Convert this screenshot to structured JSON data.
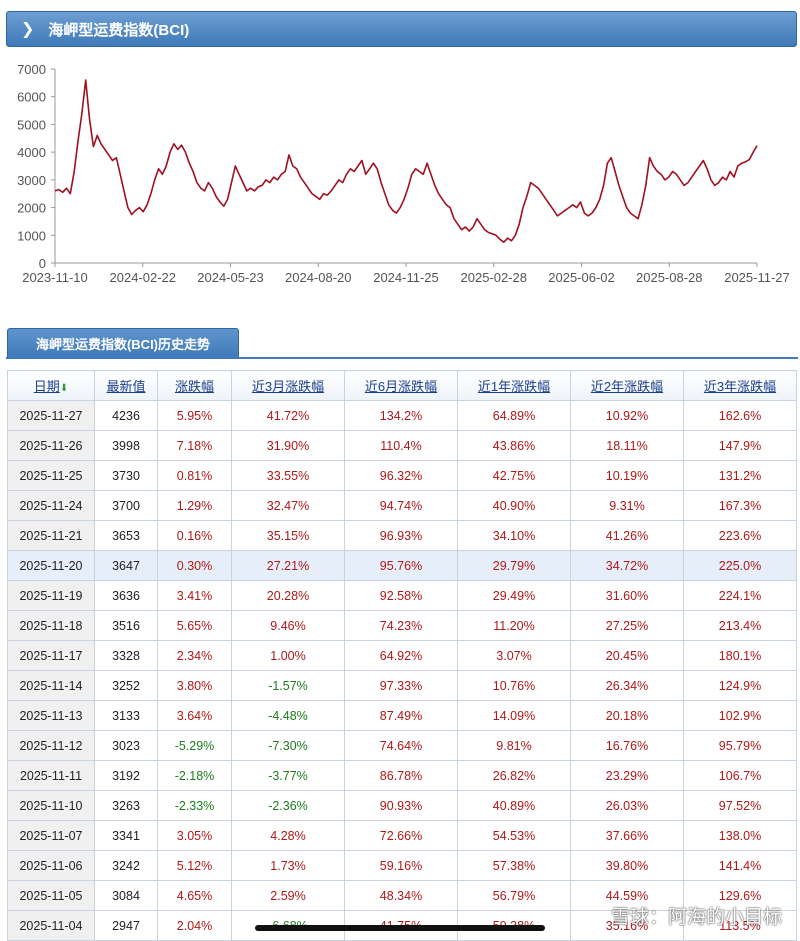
{
  "header": {
    "title": "海岬型运费指数(BCI)"
  },
  "tab": {
    "label": "海岬型运费指数(BCI)历史走势"
  },
  "watermark": "雪球：阿海的小目标",
  "chart_data": {
    "type": "line",
    "y_ticks": [
      "0",
      "1000",
      "2000",
      "3000",
      "4000",
      "5000",
      "6000",
      "7000"
    ],
    "x_ticks": [
      "2023-11-10",
      "2024-02-22",
      "2024-05-23",
      "2024-08-20",
      "2024-11-25",
      "2025-02-28",
      "2025-06-02",
      "2025-08-28",
      "2025-11-27"
    ],
    "ylim": [
      0,
      7000
    ],
    "grid": false,
    "line_color": "#a01020",
    "values": [
      2600,
      2650,
      2550,
      2700,
      2500,
      3300,
      4400,
      5400,
      6600,
      5200,
      4200,
      4600,
      4300,
      4100,
      3900,
      3700,
      3800,
      3200,
      2600,
      2000,
      1750,
      1900,
      2000,
      1850,
      2100,
      2500,
      3000,
      3400,
      3200,
      3500,
      4000,
      4300,
      4100,
      4250,
      4000,
      3600,
      3300,
      2900,
      2700,
      2600,
      2900,
      2700,
      2400,
      2200,
      2050,
      2300,
      2900,
      3500,
      3200,
      2900,
      2600,
      2700,
      2600,
      2750,
      2800,
      3000,
      2900,
      3100,
      3000,
      3200,
      3300,
      3900,
      3500,
      3400,
      3100,
      2900,
      2700,
      2500,
      2400,
      2300,
      2500,
      2450,
      2600,
      2800,
      3000,
      2900,
      3200,
      3400,
      3300,
      3500,
      3700,
      3200,
      3400,
      3600,
      3400,
      2900,
      2500,
      2100,
      1900,
      1800,
      2000,
      2300,
      2700,
      3200,
      3400,
      3300,
      3200,
      3600,
      3200,
      2800,
      2500,
      2300,
      2100,
      2000,
      1600,
      1400,
      1200,
      1300,
      1150,
      1300,
      1600,
      1400,
      1200,
      1100,
      1050,
      1000,
      850,
      750,
      900,
      800,
      1000,
      1400,
      2000,
      2400,
      2900,
      2800,
      2700,
      2500,
      2300,
      2100,
      1900,
      1700,
      1800,
      1900,
      2000,
      2100,
      2000,
      2200,
      1800,
      1700,
      1800,
      2000,
      2300,
      2800,
      3600,
      3800,
      3300,
      2800,
      2400,
      2000,
      1800,
      1700,
      1600,
      2100,
      2800,
      3800,
      3500,
      3300,
      3200,
      3000,
      3100,
      3300,
      3200,
      3000,
      2800,
      2900,
      3100,
      3300,
      3500,
      3700,
      3400,
      3000,
      2800,
      2900,
      3100,
      3000,
      3300,
      3100,
      3500,
      3600,
      3650,
      3730,
      3998,
      4236
    ]
  },
  "table": {
    "headers": [
      "日期",
      "最新值",
      "涨跌幅",
      "近3月涨跌幅",
      "近6月涨跌幅",
      "近1年涨跌幅",
      "近2年涨跌幅",
      "近3年涨跌幅"
    ],
    "rows": [
      [
        "2025-11-27",
        "4236",
        "5.95%",
        "41.72%",
        "134.2%",
        "64.89%",
        "10.92%",
        "162.6%"
      ],
      [
        "2025-11-26",
        "3998",
        "7.18%",
        "31.90%",
        "110.4%",
        "43.86%",
        "18.11%",
        "147.9%"
      ],
      [
        "2025-11-25",
        "3730",
        "0.81%",
        "33.55%",
        "96.32%",
        "42.75%",
        "10.19%",
        "131.2%"
      ],
      [
        "2025-11-24",
        "3700",
        "1.29%",
        "32.47%",
        "94.74%",
        "40.90%",
        "9.31%",
        "167.3%"
      ],
      [
        "2025-11-21",
        "3653",
        "0.16%",
        "35.15%",
        "96.93%",
        "34.10%",
        "41.26%",
        "223.6%"
      ],
      [
        "2025-11-20",
        "3647",
        "0.30%",
        "27.21%",
        "95.76%",
        "29.79%",
        "34.72%",
        "225.0%"
      ],
      [
        "2025-11-19",
        "3636",
        "3.41%",
        "20.28%",
        "92.58%",
        "29.49%",
        "31.60%",
        "224.1%"
      ],
      [
        "2025-11-18",
        "3516",
        "5.65%",
        "9.46%",
        "74.23%",
        "11.20%",
        "27.25%",
        "213.4%"
      ],
      [
        "2025-11-17",
        "3328",
        "2.34%",
        "1.00%",
        "64.92%",
        "3.07%",
        "20.45%",
        "180.1%"
      ],
      [
        "2025-11-14",
        "3252",
        "3.80%",
        "-1.57%",
        "97.33%",
        "10.76%",
        "26.34%",
        "124.9%"
      ],
      [
        "2025-11-13",
        "3133",
        "3.64%",
        "-4.48%",
        "87.49%",
        "14.09%",
        "20.18%",
        "102.9%"
      ],
      [
        "2025-11-12",
        "3023",
        "-5.29%",
        "-7.30%",
        "74.64%",
        "9.81%",
        "16.76%",
        "95.79%"
      ],
      [
        "2025-11-11",
        "3192",
        "-2.18%",
        "-3.77%",
        "86.78%",
        "26.82%",
        "23.29%",
        "106.7%"
      ],
      [
        "2025-11-10",
        "3263",
        "-2.33%",
        "-2.36%",
        "90.93%",
        "40.89%",
        "26.03%",
        "97.52%"
      ],
      [
        "2025-11-07",
        "3341",
        "3.05%",
        "4.28%",
        "72.66%",
        "54.53%",
        "37.66%",
        "138.0%"
      ],
      [
        "2025-11-06",
        "3242",
        "5.12%",
        "1.73%",
        "59.16%",
        "57.38%",
        "39.80%",
        "141.4%"
      ],
      [
        "2025-11-05",
        "3084",
        "4.65%",
        "2.59%",
        "48.34%",
        "56.79%",
        "44.59%",
        "129.6%"
      ],
      [
        "2025-11-04",
        "2947",
        "2.04%",
        "-6.68%",
        "41.75%",
        "59.38%",
        "35.16%",
        "113.5%"
      ]
    ]
  }
}
